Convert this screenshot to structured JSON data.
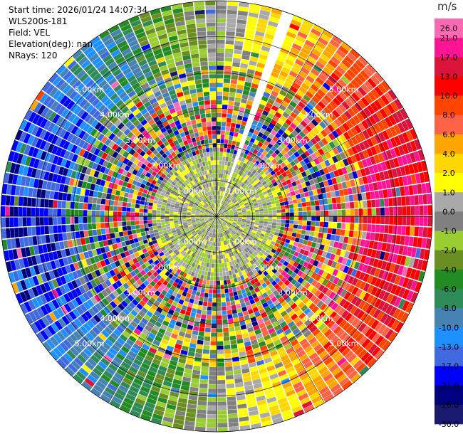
{
  "header": {
    "start_time": "Start time: 2026/01/24 14:07:34",
    "instrument": "WLS200s-181",
    "field": "Field: VEL",
    "elevation": "Elevation(deg): nan",
    "nrays": "NRays: 120"
  },
  "chart_data": {
    "type": "heatmap",
    "projection": "polar PPI",
    "field": "VEL",
    "n_rays": 120,
    "range_rings_km": [
      1.0,
      2.0,
      3.0,
      4.0,
      5.0
    ],
    "ring_labels": [
      "1.00km",
      "2.00km",
      "3.00km",
      "4.00km",
      "5.00km"
    ],
    "max_range_km": 6.0,
    "missing_ray_azimuth_deg": 20,
    "colorbar": {
      "unit": "m/s",
      "ticks": [
        "26.0",
        "21.0",
        "17.0",
        "13.0",
        "10.0",
        "8.0",
        "6.0",
        "4.0",
        "2.0",
        "1.0",
        "0.0",
        "-1.0",
        "-2.0",
        "-4.0",
        "-6.0",
        "-8.0",
        "-10.0",
        "-13.0",
        "-17.0",
        "-21.0",
        "-26.0",
        "-30.0"
      ],
      "colors": [
        "#ff69b4",
        "#ff1493",
        "#dc143c",
        "#ff0000",
        "#ff4500",
        "#ff6347",
        "#ffa500",
        "#ffd700",
        "#ffff00",
        "#a9a9a9",
        "#808080",
        "#9acd32",
        "#6b8e23",
        "#228b22",
        "#2e8b57",
        "#4682b4",
        "#1e90ff",
        "#4169e1",
        "#0000ff",
        "#000080",
        "#191970"
      ]
    },
    "pattern": {
      "inner_km": 1.8,
      "mid_km": 3.2,
      "approaching_side": "west",
      "receding_side": "east"
    }
  }
}
